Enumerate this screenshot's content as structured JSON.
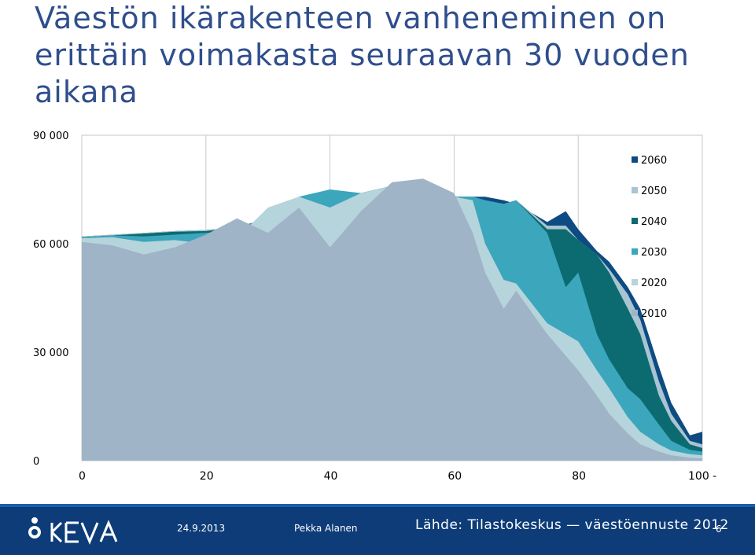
{
  "title": "Väestön ikärakenteen vanheneminen on erittäin voimakasta seuraavan 30 vuoden aikana",
  "footer": {
    "date": "24.9.2013",
    "author": "Pekka Alanen",
    "source": "Lähde: Tilastokeskus — väestöennuste 2012",
    "page": "6",
    "logo_text": "KEVA"
  },
  "colors": {
    "2060": "#0d4b82",
    "2050": "#a9c4d2",
    "2040": "#0b6b70",
    "2030": "#3ba6bc",
    "2020": "#b6d4dc",
    "2010": "#9fb4c6"
  },
  "chart_data": {
    "type": "area",
    "xlabel": "",
    "ylabel": "",
    "xlim": [
      0,
      100
    ],
    "ylim": [
      0,
      90000
    ],
    "x_ticks": [
      "0",
      "20",
      "40",
      "60",
      "80",
      "100 -"
    ],
    "y_ticks": [
      "0",
      "30 000",
      "60 000",
      "90 000"
    ],
    "grid": "vertical",
    "legend_position": "right",
    "x": [
      0,
      5,
      10,
      15,
      20,
      25,
      30,
      35,
      40,
      45,
      50,
      55,
      60,
      63,
      65,
      68,
      70,
      75,
      78,
      80,
      83,
      85,
      88,
      90,
      93,
      95,
      98,
      100
    ],
    "series": [
      {
        "name": "2060",
        "values": [
          62000,
          62500,
          63000,
          63500,
          63800,
          64500,
          67000,
          69500,
          71000,
          74000,
          76000,
          76000,
          73000,
          73000,
          73000,
          72000,
          71000,
          66000,
          69000,
          64000,
          58000,
          55000,
          48000,
          42000,
          26000,
          16000,
          7000,
          8000
        ]
      },
      {
        "name": "2050",
        "values": [
          62000,
          62500,
          63000,
          63500,
          63800,
          64500,
          67000,
          69500,
          71000,
          74000,
          76000,
          76000,
          73000,
          73000,
          72000,
          71000,
          72000,
          65000,
          65000,
          61000,
          57000,
          53000,
          46000,
          39000,
          22000,
          13000,
          5500,
          4500
        ]
      },
      {
        "name": "2040",
        "values": [
          61800,
          62300,
          62800,
          63300,
          63500,
          64500,
          67000,
          73000,
          73000,
          74000,
          76000,
          76000,
          73000,
          73000,
          72000,
          71000,
          72000,
          64000,
          64000,
          61000,
          57000,
          52000,
          42000,
          35000,
          18000,
          11000,
          4500,
          3500
        ]
      },
      {
        "name": "2030",
        "values": [
          61800,
          62300,
          62000,
          62500,
          63000,
          63500,
          68000,
          73000,
          75000,
          74000,
          76000,
          76000,
          73000,
          73000,
          72000,
          71000,
          72000,
          63000,
          48000,
          52000,
          35000,
          28000,
          20000,
          17000,
          10000,
          5500,
          3000,
          2500
        ]
      },
      {
        "name": "2020",
        "values": [
          61500,
          61800,
          60500,
          61000,
          60000,
          61500,
          70000,
          73000,
          70000,
          74000,
          76000,
          76000,
          73000,
          72000,
          60000,
          50000,
          49000,
          38000,
          35000,
          33000,
          25000,
          20000,
          12000,
          8000,
          4500,
          2800,
          1800,
          1500
        ]
      },
      {
        "name": "2010",
        "values": [
          60500,
          59500,
          57000,
          59000,
          62500,
          67000,
          63000,
          70000,
          59000,
          69000,
          77000,
          78000,
          74000,
          63000,
          52000,
          42000,
          47000,
          35000,
          29000,
          25000,
          18000,
          13000,
          7500,
          4500,
          2500,
          1500,
          800,
          600
        ]
      }
    ]
  }
}
